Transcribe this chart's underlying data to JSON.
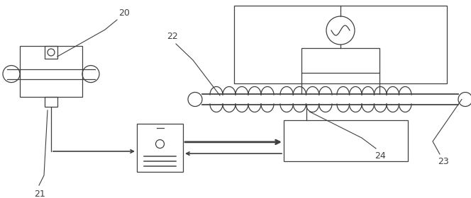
{
  "bg_color": "#ffffff",
  "line_color": "#404040",
  "label_20": "20",
  "label_21": "21",
  "label_22": "22",
  "label_23": "23",
  "label_24": "24",
  "fig_width": 6.64,
  "fig_height": 2.8,
  "dpi": 100
}
